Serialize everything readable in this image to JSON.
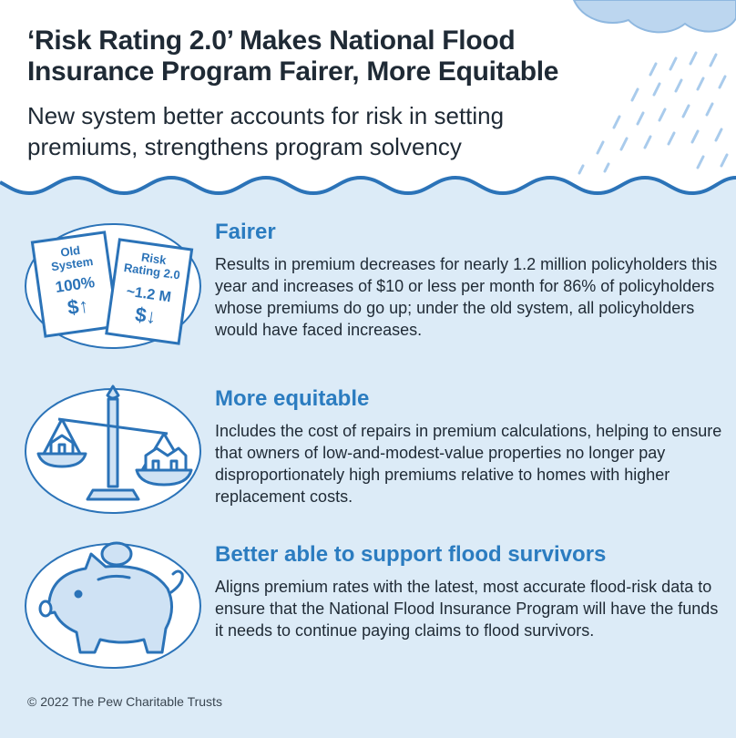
{
  "header": {
    "title": "‘Risk Rating 2.0’ Makes National Flood Insurance Program Fairer, More Equitable",
    "subtitle": "New system better accounts for risk in setting premiums, strengthens program solvency"
  },
  "sections": [
    {
      "title": "Fairer",
      "body": "Results in premium decreases for nearly 1.2 million policyholders this year and increases of $10 or less per month for 86% of policyholders whose premiums do go up; under the old system, all policyholders would have faced increases.",
      "icon": "premium-cards-icon",
      "cards": {
        "old": {
          "line1": "Old",
          "line2": "System",
          "value": "100%",
          "symbol": "$↑"
        },
        "new": {
          "line1": "Risk",
          "line2": "Rating 2.0",
          "value": "~1.2 M",
          "symbol": "$↓"
        }
      }
    },
    {
      "title": "More equitable",
      "body": "Includes the cost of repairs in premium calculations, helping to ensure that owners of low-and-modest-value properties no longer pay disproportionately high premiums relative to homes with higher replacement costs.",
      "icon": "balance-scale-icon"
    },
    {
      "title": "Better able to support flood survivors",
      "body": "Aligns premium rates with the latest, most accurate flood-risk data to ensure that the National Flood Insurance Program will have the funds it needs to continue paying claims to flood survivors.",
      "icon": "piggy-bank-icon"
    }
  ],
  "footer": {
    "copyright": "© 2022 The Pew Charitable Trusts"
  },
  "colors": {
    "background": "#dcebf7",
    "header": "#ffffff",
    "accent": "#2b7cc0",
    "cloud": "#bcd6ef",
    "icon_stroke": "#2b73b8",
    "icon_fill": "#ffffff"
  }
}
